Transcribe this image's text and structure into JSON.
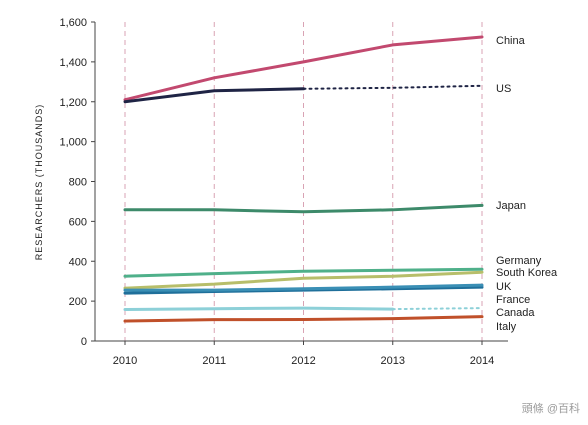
{
  "chart_data": {
    "type": "line",
    "title": "",
    "xlabel": "",
    "ylabel": "RESEARCHERS (THOUSANDS)",
    "x": [
      2010,
      2011,
      2012,
      2013,
      2014
    ],
    "xticks": [
      "2010",
      "2011",
      "2012",
      "2013",
      "2014"
    ],
    "ylim": [
      0,
      1600
    ],
    "yticks": [
      "0",
      "200",
      "400",
      "600",
      "800",
      "1,000",
      "1,200",
      "1,400",
      "1,600"
    ],
    "ytick_values": [
      0,
      200,
      400,
      600,
      800,
      1000,
      1200,
      1400,
      1600
    ],
    "grid": "vertical dashed lines at each year",
    "legend": "series labels at right end of lines",
    "series": [
      {
        "name": "China",
        "color": "#c2496f",
        "values": [
          1210,
          1320,
          1400,
          1485,
          1525
        ],
        "dotted_from_index": null
      },
      {
        "name": "US",
        "color": "#1f2445",
        "values": [
          1200,
          1255,
          1265,
          1270,
          1280
        ],
        "dotted_from_index": 2
      },
      {
        "name": "Japan",
        "color": "#3d8a6a",
        "values": [
          658,
          658,
          648,
          658,
          680
        ],
        "dotted_from_index": null
      },
      {
        "name": "Germany",
        "color": "#4fb08a",
        "values": [
          325,
          338,
          350,
          355,
          360
        ],
        "dotted_from_index": null
      },
      {
        "name": "South Korea",
        "color": "#b7be6a",
        "values": [
          265,
          285,
          315,
          325,
          345
        ],
        "dotted_from_index": null
      },
      {
        "name": "UK",
        "color": "#1f6f9a",
        "values": [
          240,
          248,
          255,
          262,
          270
        ],
        "dotted_from_index": null
      },
      {
        "name": "France",
        "color": "#3a8fb5",
        "values": [
          255,
          255,
          262,
          270,
          280
        ],
        "dotted_from_index": null
      },
      {
        "name": "Canada",
        "color": "#8dd0d8",
        "values": [
          158,
          162,
          165,
          160,
          165
        ],
        "dotted_from_index": 3
      },
      {
        "name": "Italy",
        "color": "#c0502a",
        "values": [
          100,
          107,
          108,
          112,
          122
        ],
        "dotted_from_index": null
      }
    ],
    "label_order": [
      "China",
      "US",
      "Japan",
      "Germany",
      "South Korea",
      "UK",
      "France",
      "Canada",
      "Italy"
    ]
  },
  "watermark": {
    "text": "頭條 @百科"
  }
}
